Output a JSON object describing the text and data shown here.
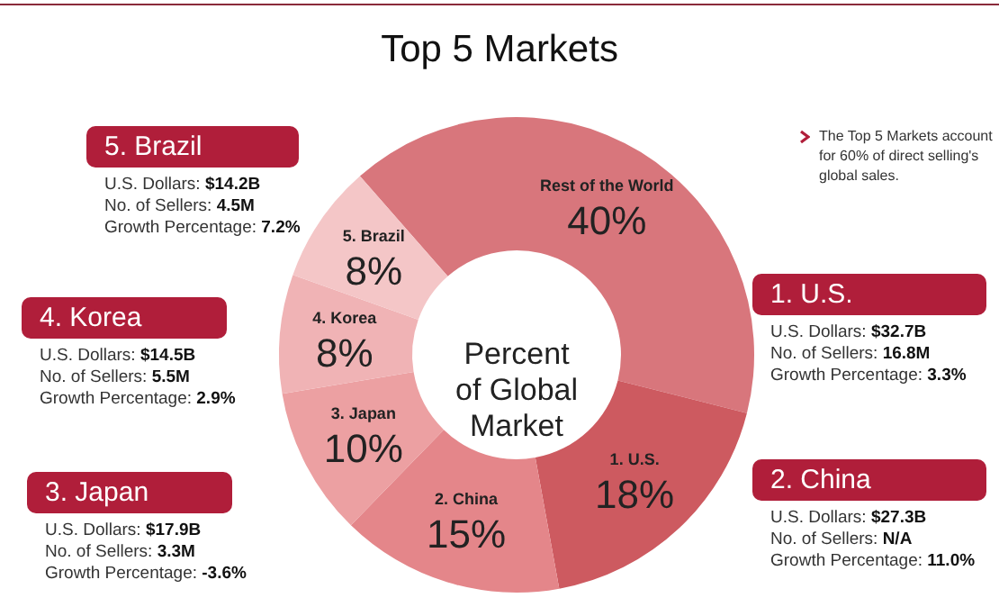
{
  "chart_data": {
    "type": "donut",
    "title": "Top 5 Markets",
    "subtitle": "Percent of Global Market",
    "categories": [
      "Rest of the World",
      "1. U.S.",
      "2. China",
      "3. Japan",
      "4. Korea",
      "5. Brazil"
    ],
    "values": [
      40,
      18,
      15,
      10,
      8,
      8
    ],
    "value_labels": [
      "40%",
      "18%",
      "15%",
      "10%",
      "8%",
      "8%"
    ],
    "colors": [
      "#d8767c",
      "#cd5a60",
      "#e4868a",
      "#eca0a2",
      "#f0b3b5",
      "#f4c6c7"
    ],
    "annotations": [
      "The Top 5 Markets account for 60% of direct selling's global sales.",
      "5. Brazil",
      "U.S. Dollars: $14.2B",
      "No. of Sellers: 4.5M",
      "Growth Percentage: 7.2%",
      "4. Korea",
      "U.S. Dollars: $14.5B",
      "No. of Sellers: 5.5M",
      "Growth Percentage: 2.9%",
      "3. Japan",
      "U.S. Dollars: $17.9B",
      "No. of Sellers: 3.3M",
      "Growth Percentage: -3.6%",
      "1. U.S.",
      "U.S. Dollars: $32.7B",
      "No. of Sellers: 16.8M",
      "Growth Percentage: 3.3%",
      "2. China",
      "U.S. Dollars: $27.3B",
      "No. of Sellers: N/A",
      "Growth Percentage: 11.0%"
    ]
  }
}
